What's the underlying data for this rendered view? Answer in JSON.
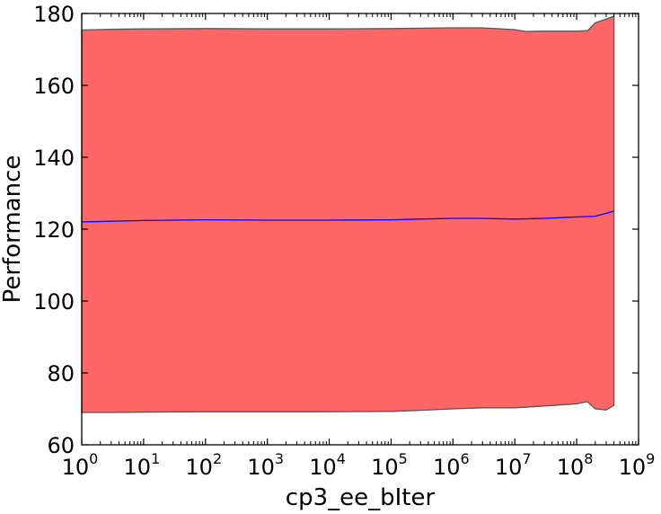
{
  "chart_data": {
    "type": "area",
    "xlabel": "cp3_ee_bIter",
    "ylabel": "Performance",
    "x_scale": "log",
    "xlim": [
      1,
      1000000000
    ],
    "ylim": [
      60,
      180
    ],
    "x_ticks": [
      {
        "value": 1,
        "base": "10",
        "exp": "0"
      },
      {
        "value": 10,
        "base": "10",
        "exp": "1"
      },
      {
        "value": 100,
        "base": "10",
        "exp": "2"
      },
      {
        "value": 1000,
        "base": "10",
        "exp": "3"
      },
      {
        "value": 10000,
        "base": "10",
        "exp": "4"
      },
      {
        "value": 100000,
        "base": "10",
        "exp": "5"
      },
      {
        "value": 1000000,
        "base": "10",
        "exp": "6"
      },
      {
        "value": 10000000,
        "base": "10",
        "exp": "7"
      },
      {
        "value": 100000000,
        "base": "10",
        "exp": "8"
      },
      {
        "value": 1000000000,
        "base": "10",
        "exp": "9"
      }
    ],
    "y_ticks": [
      {
        "value": 60,
        "label": "60"
      },
      {
        "value": 80,
        "label": "80"
      },
      {
        "value": 100,
        "label": "100"
      },
      {
        "value": 120,
        "label": "120"
      },
      {
        "value": 140,
        "label": "140"
      },
      {
        "value": 160,
        "label": "160"
      },
      {
        "value": 180,
        "label": "180"
      }
    ],
    "grid": false,
    "colors": {
      "band_fill": "#ff6666",
      "band_edge": "#555555",
      "mean_line": "#0000ff"
    },
    "series": [
      {
        "role": "mean",
        "x": [
          1,
          3,
          10,
          100,
          1000,
          10000,
          100000,
          300000,
          1000000,
          3000000,
          10000000,
          30000000,
          100000000,
          200000000,
          400000000
        ],
        "values": [
          122.0,
          122.2,
          122.4,
          122.6,
          122.5,
          122.5,
          122.6,
          122.8,
          123.0,
          123.0,
          122.8,
          123.0,
          123.4,
          123.6,
          125.0
        ]
      },
      {
        "role": "upper",
        "x": [
          1,
          3,
          10,
          100,
          1000,
          10000,
          100000,
          300000,
          1000000,
          3000000,
          10000000,
          15000000,
          30000000,
          100000000,
          150000000,
          200000000,
          400000000
        ],
        "values": [
          175.4,
          175.6,
          175.7,
          175.8,
          175.7,
          175.7,
          175.8,
          175.9,
          176.0,
          176.0,
          175.5,
          175.0,
          175.1,
          175.1,
          175.2,
          177.4,
          179.2
        ]
      },
      {
        "role": "lower",
        "x": [
          1,
          3,
          10,
          100,
          1000,
          10000,
          100000,
          300000,
          1000000,
          3000000,
          10000000,
          30000000,
          100000000,
          150000000,
          200000000,
          300000000,
          400000000
        ],
        "values": [
          69.0,
          69.0,
          69.1,
          69.2,
          69.2,
          69.2,
          69.3,
          69.6,
          70.0,
          70.3,
          70.3,
          70.8,
          71.4,
          72.0,
          70.0,
          69.7,
          71.0
        ]
      }
    ]
  }
}
